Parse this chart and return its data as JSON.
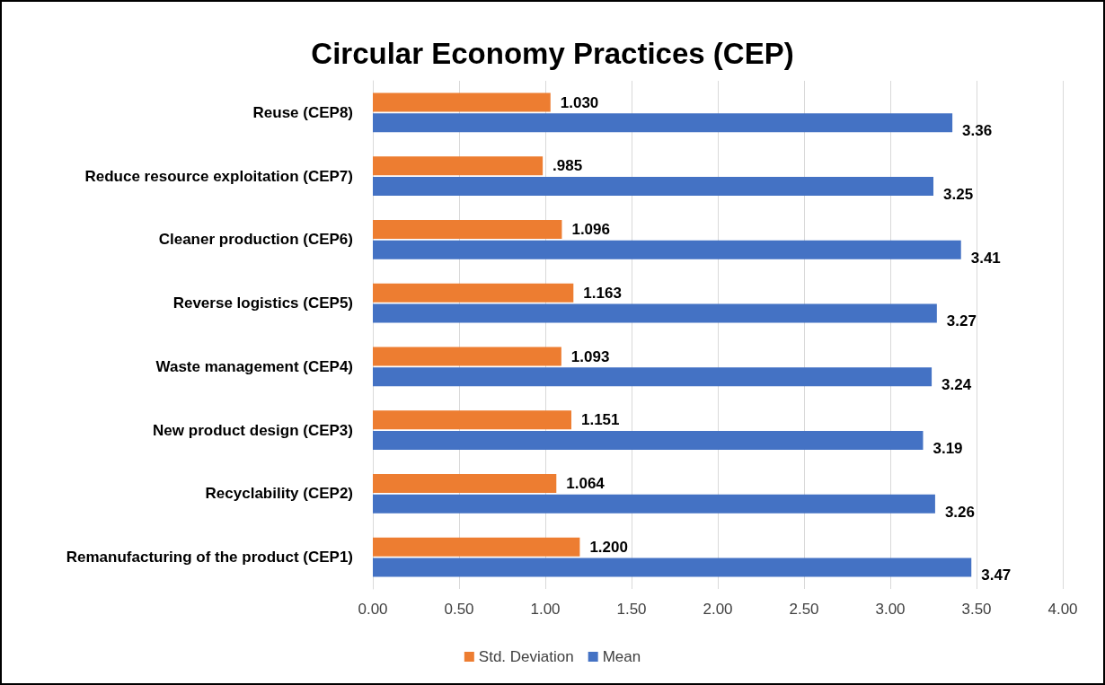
{
  "chart_data": {
    "type": "bar",
    "orientation": "horizontal",
    "title": "Circular Economy Practices (CEP)",
    "categories": [
      "Reuse (CEP8)",
      "Reduce resource exploitation (CEP7)",
      "Cleaner production (CEP6)",
      "Reverse logistics (CEP5)",
      "Waste management (CEP4)",
      "New product design (CEP3)",
      "Recyclability (CEP2)",
      "Remanufacturing of the product (CEP1)"
    ],
    "series": [
      {
        "name": "Std. Deviation",
        "color": "#ed7d31",
        "values": [
          1.03,
          0.985,
          1.096,
          1.163,
          1.093,
          1.151,
          1.064,
          1.2
        ],
        "value_labels": [
          "1.030",
          ".985",
          "1.096",
          "1.163",
          "1.093",
          "1.151",
          "1.064",
          "1.200"
        ]
      },
      {
        "name": "Mean",
        "color": "#4472c4",
        "values": [
          3.36,
          3.25,
          3.41,
          3.27,
          3.24,
          3.19,
          3.26,
          3.47
        ],
        "value_labels": [
          "3.36",
          "3.25",
          "3.41",
          "3.27",
          "3.24",
          "3.19",
          "3.26",
          "3.47"
        ]
      }
    ],
    "xlim": [
      0,
      4
    ],
    "xticks": [
      {
        "value": 0,
        "label": "0.00"
      },
      {
        "value": 0.5,
        "label": "0.50"
      },
      {
        "value": 1,
        "label": "1.00"
      },
      {
        "value": 1.5,
        "label": "1.50"
      },
      {
        "value": 2,
        "label": "2.00"
      },
      {
        "value": 2.5,
        "label": "2.50"
      },
      {
        "value": 3,
        "label": "3.00"
      },
      {
        "value": 3.5,
        "label": "3.50"
      },
      {
        "value": 4,
        "label": "4.00"
      }
    ],
    "grid": "x",
    "legend": "bottom"
  }
}
